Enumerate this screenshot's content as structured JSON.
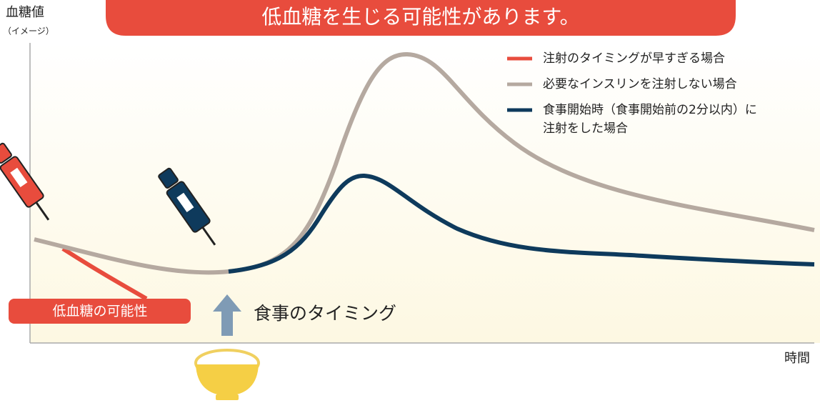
{
  "banner": {
    "text": "低血糖を生じる可能性があります。"
  },
  "axes": {
    "y_label": "血糖値",
    "y_note": "（イメージ）",
    "x_label": "時間"
  },
  "legend": [
    {
      "label": "注射のタイミングが早すぎる場合"
    },
    {
      "label": "必要なインスリンを注射しない場合"
    },
    {
      "lines": [
        "食事開始時（食事開始前の2分以内）に",
        "注射をした場合"
      ]
    }
  ],
  "annotations": {
    "hypo": "低血糖の可能性",
    "meal": "食事のタイミング"
  }
}
